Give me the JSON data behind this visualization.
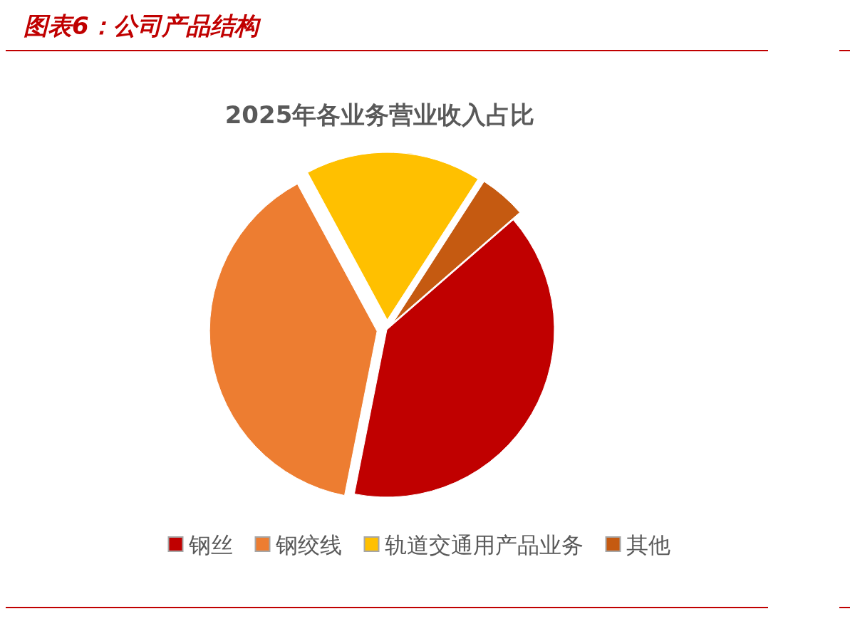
{
  "chart_data": {
    "type": "pie",
    "title": "图表6：公司产品结构",
    "subtitle": "2025年各业务营业收入占比",
    "categories": [
      "钢丝",
      "钢绞线",
      "轨道交通用产品业务",
      "其他"
    ],
    "values": [
      39.5,
      39,
      17,
      4.5
    ],
    "colors": [
      "#c00000",
      "#ed7d31",
      "#ffc000",
      "#c55a11"
    ],
    "legend": "bottom"
  }
}
